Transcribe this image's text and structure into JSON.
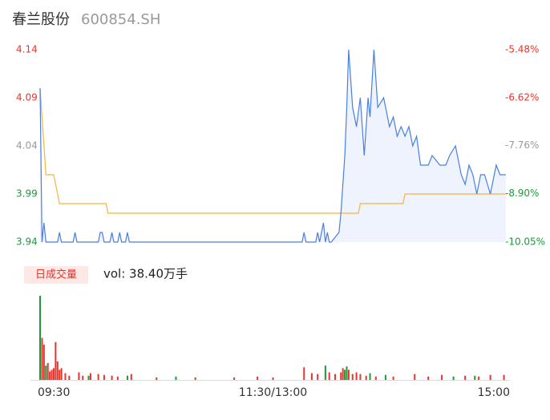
{
  "header": {
    "title": "春兰股份",
    "code": "600854.SH"
  },
  "chart_data": [
    {
      "type": "line",
      "xlim": [
        0,
        240
      ],
      "ylim": [
        3.94,
        4.14
      ],
      "yticks": [
        4.14,
        4.09,
        4.04,
        3.99,
        3.94
      ],
      "ytick_colors": [
        "#e8342c",
        "#e8342c",
        "#999999",
        "#1a9a3a",
        "#1a9a3a"
      ],
      "y2lim": [
        -10.05,
        -5.48
      ],
      "y2ticks": [
        {
          "value": -5.48,
          "label": "-5.48%"
        },
        {
          "value": -6.62,
          "label": "-6.62%"
        },
        {
          "value": -7.76,
          "label": "-7.76%"
        },
        {
          "value": -8.9,
          "label": "-8.90%"
        },
        {
          "value": -10.05,
          "label": "-10.05%"
        }
      ],
      "y2tick_colors": [
        "#e8342c",
        "#e8342c",
        "#999999",
        "#1a9a3a",
        "#1a9a3a"
      ],
      "series": [
        {
          "name": "price",
          "color": "#4a7fe0",
          "x": [
            0,
            1,
            2,
            3,
            9,
            10,
            11,
            17,
            18,
            19,
            30,
            31,
            32,
            33,
            36,
            37,
            38,
            40,
            41,
            42,
            44,
            45,
            46,
            135,
            136,
            137,
            142,
            143,
            144,
            145,
            146,
            147,
            148,
            149,
            150,
            154,
            155,
            157,
            158,
            159,
            161,
            163,
            165,
            167,
            169,
            170,
            172,
            174,
            177,
            180,
            182,
            184,
            186,
            188,
            190,
            192,
            194,
            196,
            200,
            202,
            206,
            209,
            211,
            214,
            217,
            219,
            221,
            223,
            225,
            227,
            229,
            232,
            235,
            237,
            240
          ],
          "values": [
            4.1,
            3.94,
            3.96,
            3.94,
            3.94,
            3.95,
            3.94,
            3.94,
            3.95,
            3.94,
            3.94,
            3.95,
            3.95,
            3.94,
            3.94,
            3.95,
            3.94,
            3.94,
            3.95,
            3.94,
            3.94,
            3.95,
            3.94,
            3.94,
            3.95,
            3.94,
            3.94,
            3.95,
            3.94,
            3.95,
            3.96,
            3.94,
            3.95,
            3.94,
            3.94,
            3.95,
            3.97,
            4.03,
            4.08,
            4.14,
            4.08,
            4.06,
            4.09,
            4.03,
            4.09,
            4.07,
            4.14,
            4.08,
            4.09,
            4.06,
            4.07,
            4.05,
            4.06,
            4.05,
            4.06,
            4.04,
            4.05,
            4.02,
            4.02,
            4.03,
            4.02,
            4.02,
            4.03,
            4.04,
            4.01,
            4.0,
            4.02,
            4.01,
            3.99,
            4.01,
            4.01,
            3.99,
            4.02,
            4.01,
            4.01
          ]
        },
        {
          "name": "average",
          "color": "#f5b53c",
          "x": [
            0,
            3,
            7,
            8,
            10,
            34,
            35,
            164,
            165,
            187,
            188,
            240
          ],
          "values": [
            4.1,
            4.01,
            4.01,
            4.0,
            3.98,
            3.98,
            3.97,
            3.97,
            3.98,
            3.98,
            3.99,
            3.99
          ]
        }
      ]
    },
    {
      "type": "bar",
      "title": "日成交量",
      "subtitle": "vol: 38.40万手",
      "xlim": [
        0,
        240
      ],
      "ylim": [
        0,
        100
      ],
      "xticks": [
        {
          "value": 0,
          "label": "09:30"
        },
        {
          "value": 120,
          "label": "11:30/13:00"
        },
        {
          "value": 240,
          "label": "15:00"
        }
      ],
      "series": [
        {
          "name": "up",
          "color": "#e8342c",
          "x": [
            1,
            2,
            4,
            5,
            6,
            7,
            8,
            9,
            10,
            11,
            13,
            15,
            20,
            22,
            26,
            30,
            33,
            37,
            40,
            47,
            60,
            80,
            100,
            112,
            120,
            136,
            140,
            143,
            149,
            152,
            155,
            156,
            159,
            161,
            163,
            165,
            168,
            173,
            182,
            193,
            200,
            207,
            219,
            226,
            232,
            239
          ],
          "values": [
            50,
            42,
            20,
            10,
            12,
            14,
            45,
            22,
            12,
            14,
            8,
            5,
            9,
            5,
            8,
            7,
            6,
            5,
            4,
            7,
            3,
            3,
            3,
            4,
            3,
            15,
            8,
            7,
            9,
            7,
            9,
            14,
            12,
            7,
            9,
            7,
            5,
            4,
            4,
            7,
            4,
            6,
            5,
            4,
            6,
            6
          ]
        },
        {
          "name": "down",
          "color": "#1a9a3a",
          "x": [
            0,
            3,
            25,
            45,
            70,
            147,
            157,
            158,
            170,
            178,
            213,
            224
          ],
          "values": [
            100,
            17,
            5,
            5,
            4,
            17,
            12,
            16,
            8,
            6,
            4,
            5
          ]
        }
      ]
    }
  ]
}
